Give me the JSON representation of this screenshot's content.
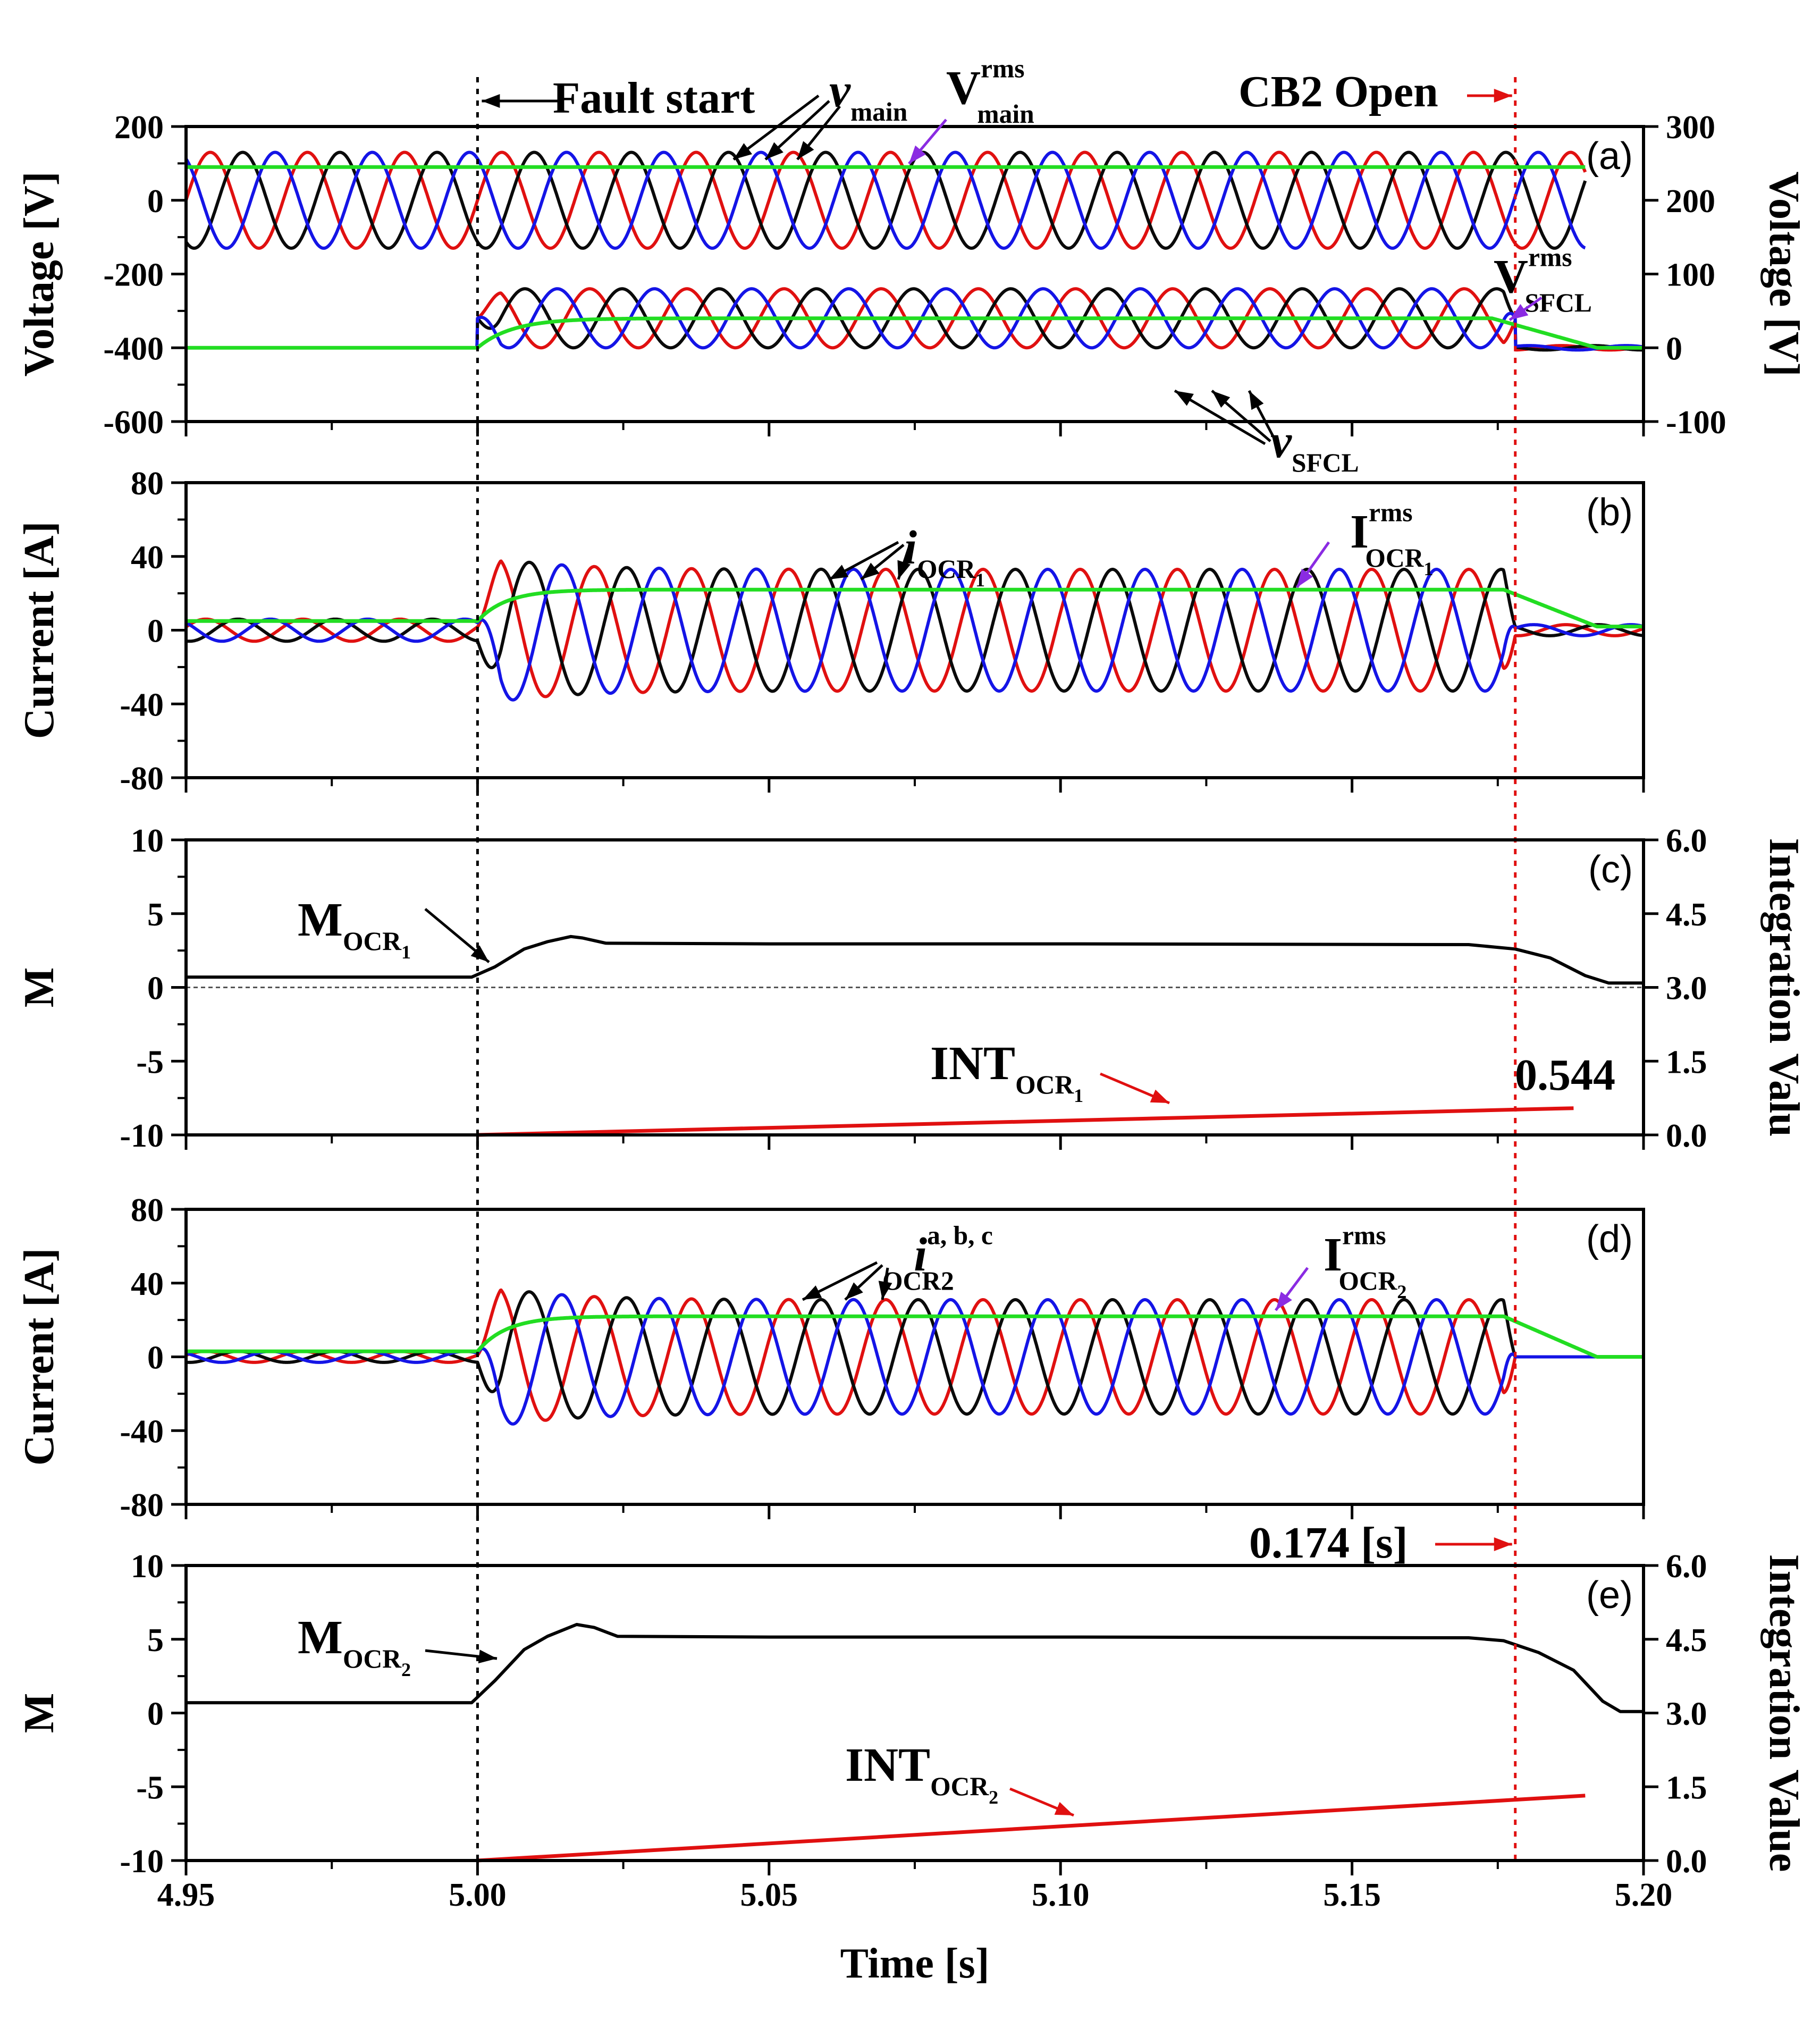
{
  "colors": {
    "a": "#e01010",
    "b": "#0a0a0a",
    "c": "#1414e6",
    "rms": "#22dd22",
    "int": "#e01010",
    "purple": "#8a2be2",
    "cb": "#e01010"
  },
  "chart_data": {
    "type": "line",
    "xlim": [
      4.95,
      5.2
    ],
    "xticks": [
      4.95,
      5.0,
      5.05,
      5.1,
      5.15,
      5.2
    ],
    "xtick_labels": [
      "4.95",
      "5.00",
      "5.05",
      "5.10",
      "5.15",
      "5.20"
    ],
    "xlabel": "Time [s]",
    "fault_start_time": 5.0,
    "cb2_open_time": 5.178,
    "frequency_hz": 60,
    "panels": [
      {
        "id": "a",
        "label": "(a)",
        "ylabel": "Voltage [V]",
        "ylim": [
          -600,
          200
        ],
        "yticks": [
          200,
          0,
          -200,
          -400,
          -600
        ],
        "ytick_labels": [
          "200",
          "0",
          "-200",
          "-400",
          "-600"
        ],
        "y2label": "Voltage [V]",
        "y2lim": [
          -100,
          300
        ],
        "y2ticks": [
          300,
          200,
          100,
          0,
          -100
        ],
        "y2tick_labels": [
          "300",
          "200",
          "100",
          "0",
          "-100"
        ],
        "series": [
          {
            "name": "v_main",
            "kind": "three-phase",
            "offset": 0,
            "prefault_amp": 130,
            "fault_amp": 130,
            "post_amp": 130
          },
          {
            "name": "V_main_rms",
            "kind": "rms",
            "level": 90
          },
          {
            "name": "v_SFCL",
            "kind": "three-phase",
            "axis": "right",
            "offset": 40,
            "prefault_amp": 0,
            "fault_amp": 40,
            "post_amp": 3
          },
          {
            "name": "V_SFCL_rms",
            "kind": "rms",
            "axis": "right",
            "prefault": 0,
            "fault": 40,
            "post": 0
          }
        ]
      },
      {
        "id": "b",
        "label": "(b)",
        "ylabel": "Current [A]",
        "ylim": [
          -80,
          80
        ],
        "yticks": [
          80,
          40,
          0,
          -40,
          -80
        ],
        "ytick_labels": [
          "80",
          "40",
          "0",
          "-40",
          "-80"
        ],
        "series": [
          {
            "name": "i_OCR1",
            "kind": "three-phase",
            "prefault_amp": 6,
            "fault_amp": 33,
            "peak": 41,
            "post_amp": 3
          },
          {
            "name": "I_OCR1_rms",
            "kind": "rms",
            "prefault": 5,
            "fault": 22,
            "post": 2
          }
        ]
      },
      {
        "id": "c",
        "label": "(c)",
        "ylabel": "M",
        "ylim": [
          -10,
          10
        ],
        "yticks": [
          10,
          5,
          0,
          -5,
          -10
        ],
        "ytick_labels": [
          "10",
          "5",
          "0",
          "-5",
          "-10"
        ],
        "y2label": "Integration Valu",
        "y2lim": [
          0,
          6
        ],
        "y2ticks": [
          6.0,
          4.5,
          3.0,
          1.5,
          0.0
        ],
        "y2tick_labels": [
          "6.0",
          "4.5",
          "3.0",
          "1.5",
          "0.0"
        ],
        "series": [
          {
            "name": "M_OCR1",
            "points": [
              [
                4.95,
                0.7
              ],
              [
                4.999,
                0.7
              ],
              [
                5.003,
                1.4
              ],
              [
                5.008,
                2.6
              ],
              [
                5.012,
                3.1
              ],
              [
                5.016,
                3.45
              ],
              [
                5.018,
                3.35
              ],
              [
                5.022,
                3.0
              ],
              [
                5.05,
                2.95
              ],
              [
                5.1,
                2.95
              ],
              [
                5.17,
                2.9
              ],
              [
                5.178,
                2.6
              ],
              [
                5.184,
                2.0
              ],
              [
                5.19,
                0.8
              ],
              [
                5.194,
                0.3
              ],
              [
                5.2,
                0.3
              ]
            ]
          },
          {
            "name": "INT_OCR1",
            "axis": "right",
            "points": [
              [
                5.0,
                0.0
              ],
              [
                5.188,
                0.544
              ]
            ]
          }
        ],
        "final_value_label": "0.544"
      },
      {
        "id": "d",
        "label": "(d)",
        "ylabel": "Current [A]",
        "ylim": [
          -80,
          80
        ],
        "yticks": [
          80,
          40,
          0,
          -40,
          -80
        ],
        "ytick_labels": [
          "80",
          "40",
          "0",
          "-40",
          "-80"
        ],
        "series": [
          {
            "name": "i_OCR2 a, b, c",
            "kind": "three-phase",
            "prefault_amp": 3,
            "fault_amp": 31,
            "peak": 40,
            "post_amp": 0
          },
          {
            "name": "I_OCR2_rms",
            "kind": "rms",
            "prefault": 3,
            "fault": 22,
            "post": 0
          }
        ]
      },
      {
        "id": "e",
        "label": "(e)",
        "ylabel": "M",
        "ylim": [
          -10,
          10
        ],
        "yticks": [
          10,
          5,
          0,
          -5,
          -10
        ],
        "ytick_labels": [
          "10",
          "5",
          "0",
          "-5",
          "-10"
        ],
        "y2label": "Integration Value",
        "y2lim": [
          0,
          6
        ],
        "y2ticks": [
          6.0,
          4.5,
          3.0,
          1.5,
          0.0
        ],
        "y2tick_labels": [
          "6.0",
          "4.5",
          "3.0",
          "1.5",
          "0.0"
        ],
        "series": [
          {
            "name": "M_OCR2",
            "points": [
              [
                4.95,
                0.7
              ],
              [
                4.999,
                0.7
              ],
              [
                5.003,
                2.2
              ],
              [
                5.008,
                4.3
              ],
              [
                5.012,
                5.2
              ],
              [
                5.017,
                6.0
              ],
              [
                5.02,
                5.8
              ],
              [
                5.024,
                5.2
              ],
              [
                5.05,
                5.15
              ],
              [
                5.1,
                5.15
              ],
              [
                5.17,
                5.1
              ],
              [
                5.176,
                4.9
              ],
              [
                5.182,
                4.1
              ],
              [
                5.188,
                2.9
              ],
              [
                5.193,
                0.8
              ],
              [
                5.196,
                0.1
              ],
              [
                5.2,
                0.1
              ]
            ]
          },
          {
            "name": "INT_OCR2",
            "axis": "right",
            "points": [
              [
                5.0,
                0.0
              ],
              [
                5.19,
                1.32
              ]
            ]
          }
        ],
        "trip_time_label": "0.174 [s]"
      }
    ],
    "annotations": {
      "fault_start": "Fault start",
      "cb2_open": "CB2 Open",
      "v_main": {
        "sym": "v",
        "sub": "main"
      },
      "V_main_rms": {
        "sym": "V",
        "sup": "rms",
        "sub": "main"
      },
      "V_SFCL_rms": {
        "sym": "V",
        "sup": "rms",
        "sub": "SFCL"
      },
      "v_SFCL": {
        "sym": "v",
        "sub": "SFCL"
      },
      "i_OCR1": {
        "sym": "i",
        "sub": "OCR",
        "subsub": "1"
      },
      "I_OCR1_rms": {
        "sym": "I",
        "sup": "rms",
        "sub": "OCR",
        "subsub": "1"
      },
      "M_OCR1": {
        "sym": "M",
        "sub": "OCR",
        "subsub": "1"
      },
      "INT_OCR1": {
        "sym": "INT",
        "sub": "OCR",
        "subsub": "1"
      },
      "i_OCR2": {
        "sym": "i",
        "sup": "a, b, c",
        "sub": "OCR2"
      },
      "I_OCR2_rms": {
        "sym": "I",
        "sup": "rms",
        "sub": "OCR",
        "subsub": "2"
      },
      "M_OCR2": {
        "sym": "M",
        "sub": "OCR",
        "subsub": "2"
      },
      "INT_OCR2": {
        "sym": "INT",
        "sub": "OCR",
        "subsub": "2"
      }
    }
  }
}
